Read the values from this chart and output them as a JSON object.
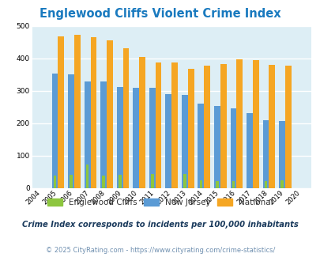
{
  "title": "Englewood Cliffs Violent Crime Index",
  "years": [
    "2004",
    "2005",
    "2006",
    "2007",
    "2008",
    "2009",
    "2010",
    "2011",
    "2012",
    "2013",
    "2014",
    "2015",
    "2016",
    "2017",
    "2018",
    "2019",
    "2020"
  ],
  "englewood": [
    0,
    38,
    40,
    73,
    38,
    40,
    0,
    43,
    0,
    44,
    23,
    22,
    22,
    0,
    20,
    23,
    0
  ],
  "new_jersey": [
    0,
    354,
    350,
    329,
    329,
    311,
    309,
    309,
    291,
    287,
    260,
    254,
    247,
    230,
    210,
    207,
    0
  ],
  "national": [
    0,
    469,
    473,
    467,
    455,
    432,
    405,
    387,
    387,
    367,
    377,
    383,
    397,
    394,
    380,
    379,
    0
  ],
  "englewood_color": "#8dc63f",
  "nj_color": "#5b9bd5",
  "national_color": "#f5a623",
  "plot_bg": "#ddeef5",
  "ylim": [
    0,
    500
  ],
  "yticks": [
    0,
    100,
    200,
    300,
    400,
    500
  ],
  "subtitle": "Crime Index corresponds to incidents per 100,000 inhabitants",
  "footer": "© 2025 CityRating.com - https://www.cityrating.com/crime-statistics/",
  "title_color": "#1a7abf",
  "subtitle_color": "#1a3a5c",
  "footer_color": "#7090b0"
}
